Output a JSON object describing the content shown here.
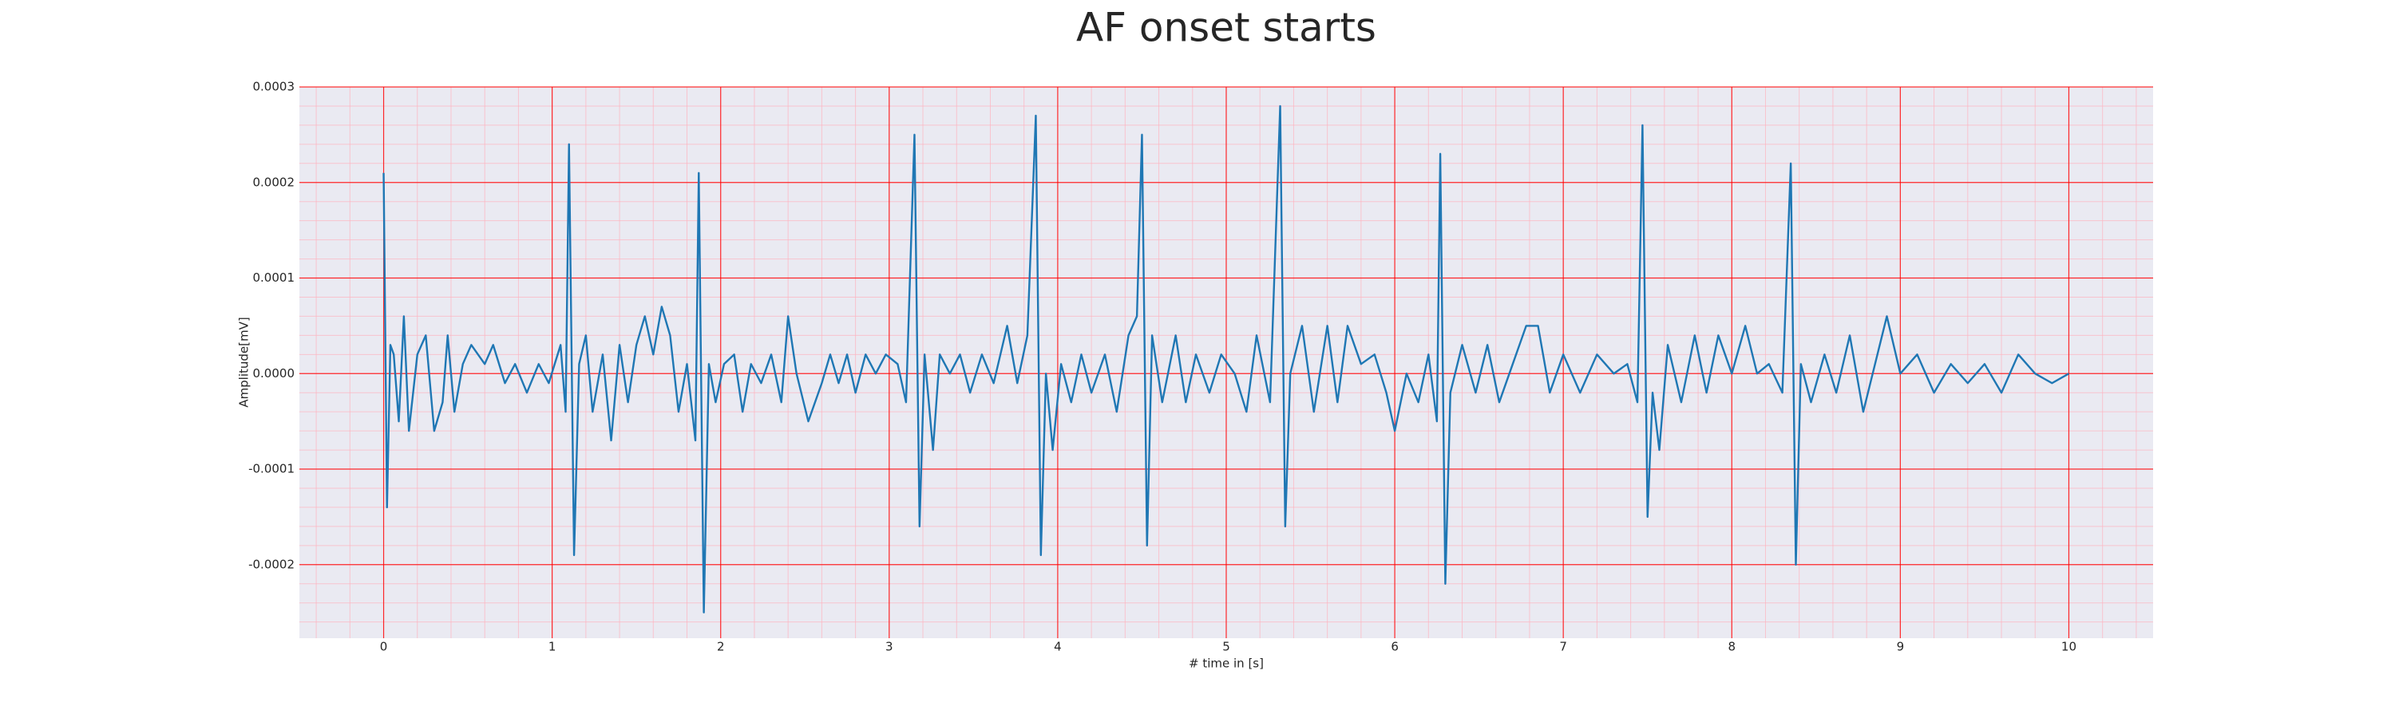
{
  "chart_data": {
    "type": "line",
    "title": "AF onset starts",
    "x_label": "# time in [s]",
    "y_label": "Amplitude[mV]",
    "xlim": [
      -0.5,
      10.5
    ],
    "ylim": [
      -0.000277,
      0.0003
    ],
    "xticks": [
      0,
      1,
      2,
      3,
      4,
      5,
      6,
      7,
      8,
      9,
      10
    ],
    "yticks": [
      -0.0002,
      -0.0001,
      {
        "value": 0,
        "label": "0.0000"
      },
      0.0001,
      0.0002,
      0.0003
    ],
    "xminorticks": [
      -0.4,
      -0.2,
      0,
      0.2,
      0.4,
      0.6,
      0.8,
      1,
      1.2,
      1.4,
      1.6,
      1.8,
      2,
      2.2,
      2.4,
      2.6,
      2.8,
      3,
      3.2,
      3.4,
      3.6,
      3.8,
      4,
      4.2,
      4.4,
      4.6,
      4.8,
      5,
      5.2,
      5.4,
      5.6,
      5.8,
      6,
      6.2,
      6.4,
      6.6,
      6.8,
      7,
      7.2,
      7.4,
      7.6,
      7.8,
      8,
      8.2,
      8.4,
      8.6,
      8.8,
      9,
      9.2,
      9.4,
      9.6,
      9.8,
      10,
      10.2,
      10.4
    ],
    "yminorticks": [
      -0.00026,
      -0.00024,
      -0.00022,
      -0.0002,
      -0.00018,
      -0.00016,
      -0.00014,
      -0.00012,
      -0.0001,
      -8e-05,
      -6e-05,
      -4e-05,
      -2e-05,
      0,
      2e-05,
      4e-05,
      6e-05,
      8e-05,
      0.0001,
      0.00012,
      0.00014,
      0.00016,
      0.00018,
      0.0002,
      0.00022,
      0.00024,
      0.00026,
      0.00028
    ],
    "grid": true,
    "grid_color": "#ff0000",
    "minor_grid_color": "#ffb3bf",
    "background": "#eaeaf2",
    "x": [
      0,
      0.02,
      0.04,
      0.06,
      0.09,
      0.12,
      0.15,
      0.2,
      0.25,
      0.3,
      0.35,
      0.38,
      0.42,
      0.47,
      0.52,
      0.6,
      0.65,
      0.72,
      0.78,
      0.85,
      0.92,
      0.98,
      1.05,
      1.08,
      1.1,
      1.13,
      1.16,
      1.2,
      1.24,
      1.3,
      1.35,
      1.4,
      1.45,
      1.5,
      1.55,
      1.6,
      1.65,
      1.7,
      1.75,
      1.8,
      1.85,
      1.87,
      1.9,
      1.93,
      1.97,
      2.02,
      2.08,
      2.13,
      2.18,
      2.24,
      2.3,
      2.36,
      2.4,
      2.45,
      2.52,
      2.6,
      2.65,
      2.7,
      2.75,
      2.8,
      2.86,
      2.92,
      2.98,
      3.05,
      3.1,
      3.15,
      3.18,
      3.21,
      3.26,
      3.3,
      3.36,
      3.42,
      3.48,
      3.55,
      3.62,
      3.7,
      3.76,
      3.82,
      3.87,
      3.9,
      3.93,
      3.97,
      4.02,
      4.08,
      4.14,
      4.2,
      4.28,
      4.35,
      4.42,
      4.47,
      4.5,
      4.53,
      4.56,
      4.62,
      4.7,
      4.76,
      4.82,
      4.9,
      4.97,
      5.05,
      5.12,
      5.18,
      5.26,
      5.32,
      5.35,
      5.38,
      5.45,
      5.52,
      5.6,
      5.66,
      5.72,
      5.8,
      5.88,
      5.95,
      6.0,
      6.07,
      6.14,
      6.2,
      6.25,
      6.27,
      6.3,
      6.33,
      6.4,
      6.48,
      6.55,
      6.62,
      6.7,
      6.78,
      6.85,
      6.92,
      7.0,
      7.1,
      7.2,
      7.3,
      7.38,
      7.44,
      7.47,
      7.5,
      7.53,
      7.57,
      7.62,
      7.7,
      7.78,
      7.85,
      7.92,
      8.0,
      8.08,
      8.15,
      8.22,
      8.3,
      8.35,
      8.38,
      8.41,
      8.47,
      8.55,
      8.62,
      8.7,
      8.78,
      8.85,
      8.92,
      9.0,
      9.1,
      9.2,
      9.3,
      9.4,
      9.5,
      9.6,
      9.7,
      9.8,
      9.9,
      10.0
    ],
    "series": [
      {
        "color": "#1f77b4",
        "values": [
          0.00021,
          -0.00014,
          3e-05,
          2e-05,
          -5e-05,
          6e-05,
          -6e-05,
          2e-05,
          4e-05,
          -6e-05,
          -3e-05,
          4e-05,
          -4e-05,
          1e-05,
          3e-05,
          1e-05,
          3e-05,
          -1e-05,
          1e-05,
          -2e-05,
          1e-05,
          -1e-05,
          3e-05,
          -4e-05,
          0.00024,
          -0.00019,
          1e-05,
          4e-05,
          -4e-05,
          2e-05,
          -7e-05,
          3e-05,
          -3e-05,
          3e-05,
          6e-05,
          2e-05,
          7e-05,
          4e-05,
          -4e-05,
          1e-05,
          -7e-05,
          0.00021,
          -0.00025,
          1e-05,
          -3e-05,
          1e-05,
          2e-05,
          -4e-05,
          1e-05,
          -1e-05,
          2e-05,
          -3e-05,
          6e-05,
          0,
          -5e-05,
          -1e-05,
          2e-05,
          -1e-05,
          2e-05,
          -2e-05,
          2e-05,
          0,
          2e-05,
          1e-05,
          -3e-05,
          0.00025,
          -0.00016,
          2e-05,
          -8e-05,
          2e-05,
          0,
          2e-05,
          -2e-05,
          2e-05,
          -1e-05,
          5e-05,
          -1e-05,
          4e-05,
          0.00027,
          -0.00019,
          0,
          -8e-05,
          1e-05,
          -3e-05,
          2e-05,
          -2e-05,
          2e-05,
          -4e-05,
          4e-05,
          6e-05,
          0.00025,
          -0.00018,
          4e-05,
          -3e-05,
          4e-05,
          -3e-05,
          2e-05,
          -2e-05,
          2e-05,
          0,
          -4e-05,
          4e-05,
          -3e-05,
          0.00028,
          -0.00016,
          0,
          5e-05,
          -4e-05,
          5e-05,
          -3e-05,
          5e-05,
          1e-05,
          2e-05,
          -2e-05,
          -6e-05,
          0,
          -3e-05,
          2e-05,
          -5e-05,
          0.00023,
          -0.00022,
          -2e-05,
          3e-05,
          -2e-05,
          3e-05,
          -3e-05,
          1e-05,
          5e-05,
          5e-05,
          -2e-05,
          2e-05,
          -2e-05,
          2e-05,
          0,
          1e-05,
          -3e-05,
          0.00026,
          -0.00015,
          -2e-05,
          -8e-05,
          3e-05,
          -3e-05,
          4e-05,
          -2e-05,
          4e-05,
          0,
          5e-05,
          0,
          1e-05,
          -2e-05,
          0.00022,
          -0.0002,
          1e-05,
          -3e-05,
          2e-05,
          -2e-05,
          4e-05,
          -4e-05,
          1e-05,
          6e-05,
          0,
          2e-05,
          -2e-05,
          1e-05,
          -1e-05,
          1e-05,
          -2e-05,
          2e-05,
          0,
          -1e-05,
          0
        ]
      }
    ]
  }
}
